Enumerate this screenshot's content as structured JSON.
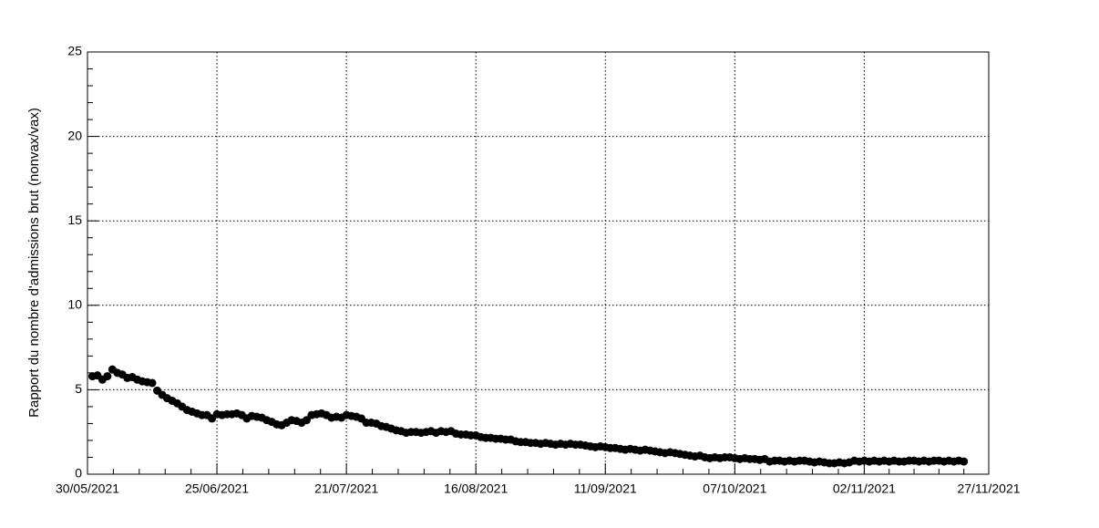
{
  "chart_data": {
    "type": "scatter",
    "ylabel": "Rapport du nombre d'admissions brut (nonvax/vax)",
    "xlim": [
      "30/05/2021",
      "27/11/2021"
    ],
    "xticks": [
      "30/05/2021",
      "25/06/2021",
      "21/07/2021",
      "16/08/2021",
      "11/09/2021",
      "07/10/2021",
      "02/11/2021",
      "27/11/2021"
    ],
    "ylim": [
      0,
      25
    ],
    "yticks": [
      0,
      5,
      10,
      15,
      20,
      25
    ],
    "grid": true,
    "color": "#000000",
    "x": [
      "31/05/2021",
      "01/06/2021",
      "02/06/2021",
      "03/06/2021",
      "04/06/2021",
      "05/06/2021",
      "06/06/2021",
      "07/06/2021",
      "08/06/2021",
      "09/06/2021",
      "10/06/2021",
      "11/06/2021",
      "12/06/2021",
      "13/06/2021",
      "14/06/2021",
      "15/06/2021",
      "16/06/2021",
      "17/06/2021",
      "18/06/2021",
      "19/06/2021",
      "20/06/2021",
      "21/06/2021",
      "22/06/2021",
      "23/06/2021",
      "24/06/2021",
      "25/06/2021",
      "26/06/2021",
      "27/06/2021",
      "28/06/2021",
      "29/06/2021",
      "30/06/2021",
      "01/07/2021",
      "02/07/2021",
      "03/07/2021",
      "04/07/2021",
      "05/07/2021",
      "06/07/2021",
      "07/07/2021",
      "08/07/2021",
      "09/07/2021",
      "10/07/2021",
      "11/07/2021",
      "12/07/2021",
      "13/07/2021",
      "14/07/2021",
      "15/07/2021",
      "16/07/2021",
      "17/07/2021",
      "18/07/2021",
      "19/07/2021",
      "20/07/2021",
      "21/07/2021",
      "22/07/2021",
      "23/07/2021",
      "24/07/2021",
      "25/07/2021",
      "26/07/2021",
      "27/07/2021",
      "28/07/2021",
      "29/07/2021",
      "30/07/2021",
      "31/07/2021",
      "01/08/2021",
      "02/08/2021",
      "03/08/2021",
      "04/08/2021",
      "05/08/2021",
      "06/08/2021",
      "07/08/2021",
      "08/08/2021",
      "09/08/2021",
      "10/08/2021",
      "11/08/2021",
      "12/08/2021",
      "13/08/2021",
      "14/08/2021",
      "15/08/2021",
      "16/08/2021",
      "17/08/2021",
      "18/08/2021",
      "19/08/2021",
      "20/08/2021",
      "21/08/2021",
      "22/08/2021",
      "23/08/2021",
      "24/08/2021",
      "25/08/2021",
      "26/08/2021",
      "27/08/2021",
      "28/08/2021",
      "29/08/2021",
      "30/08/2021",
      "31/08/2021",
      "01/09/2021",
      "02/09/2021",
      "03/09/2021",
      "04/09/2021",
      "05/09/2021",
      "06/09/2021",
      "07/09/2021",
      "08/09/2021",
      "09/09/2021",
      "10/09/2021",
      "11/09/2021",
      "12/09/2021",
      "13/09/2021",
      "14/09/2021",
      "15/09/2021",
      "16/09/2021",
      "17/09/2021",
      "18/09/2021",
      "19/09/2021",
      "20/09/2021",
      "21/09/2021",
      "22/09/2021",
      "23/09/2021",
      "24/09/2021",
      "25/09/2021",
      "26/09/2021",
      "27/09/2021",
      "28/09/2021",
      "29/09/2021",
      "30/09/2021",
      "01/10/2021",
      "02/10/2021",
      "03/10/2021",
      "04/10/2021",
      "05/10/2021",
      "06/10/2021",
      "07/10/2021",
      "08/10/2021",
      "09/10/2021",
      "10/10/2021",
      "11/10/2021",
      "12/10/2021",
      "13/10/2021",
      "14/10/2021",
      "15/10/2021",
      "16/10/2021",
      "17/10/2021",
      "18/10/2021",
      "19/10/2021",
      "20/10/2021",
      "21/10/2021",
      "22/10/2021",
      "23/10/2021",
      "24/10/2021",
      "25/10/2021",
      "26/10/2021",
      "27/10/2021",
      "28/10/2021",
      "29/10/2021",
      "30/10/2021",
      "31/10/2021",
      "01/11/2021",
      "02/11/2021",
      "03/11/2021",
      "04/11/2021",
      "05/11/2021",
      "06/11/2021",
      "07/11/2021",
      "08/11/2021",
      "09/11/2021",
      "10/11/2021",
      "11/11/2021",
      "12/11/2021",
      "13/11/2021",
      "14/11/2021",
      "15/11/2021",
      "16/11/2021",
      "17/11/2021",
      "18/11/2021",
      "19/11/2021",
      "20/11/2021",
      "21/11/2021",
      "22/11/2021"
    ],
    "values": [
      5.8,
      5.85,
      5.6,
      5.8,
      6.2,
      6.0,
      5.9,
      5.7,
      5.75,
      5.6,
      5.5,
      5.45,
      5.4,
      4.95,
      4.7,
      4.5,
      4.35,
      4.2,
      4.0,
      3.8,
      3.7,
      3.6,
      3.5,
      3.5,
      3.3,
      3.55,
      3.5,
      3.55,
      3.55,
      3.6,
      3.5,
      3.3,
      3.45,
      3.4,
      3.35,
      3.2,
      3.1,
      2.95,
      2.9,
      3.05,
      3.2,
      3.15,
      3.05,
      3.2,
      3.5,
      3.55,
      3.6,
      3.5,
      3.35,
      3.4,
      3.35,
      3.5,
      3.45,
      3.4,
      3.3,
      3.05,
      3.05,
      3.0,
      2.85,
      2.8,
      2.7,
      2.6,
      2.55,
      2.45,
      2.5,
      2.5,
      2.45,
      2.5,
      2.55,
      2.45,
      2.55,
      2.5,
      2.55,
      2.4,
      2.35,
      2.35,
      2.3,
      2.3,
      2.2,
      2.15,
      2.15,
      2.1,
      2.1,
      2.05,
      2.05,
      1.95,
      1.9,
      1.9,
      1.85,
      1.85,
      1.8,
      1.85,
      1.8,
      1.75,
      1.8,
      1.75,
      1.8,
      1.75,
      1.75,
      1.7,
      1.65,
      1.6,
      1.65,
      1.6,
      1.55,
      1.55,
      1.5,
      1.45,
      1.5,
      1.45,
      1.4,
      1.45,
      1.4,
      1.35,
      1.3,
      1.25,
      1.3,
      1.25,
      1.2,
      1.15,
      1.1,
      1.05,
      1.1,
      1.0,
      0.95,
      1.0,
      0.95,
      1.0,
      1.0,
      0.95,
      0.9,
      0.95,
      0.9,
      0.9,
      0.85,
      0.9,
      0.75,
      0.8,
      0.8,
      0.75,
      0.8,
      0.75,
      0.8,
      0.8,
      0.75,
      0.7,
      0.75,
      0.7,
      0.65,
      0.65,
      0.7,
      0.65,
      0.7,
      0.8,
      0.75,
      0.8,
      0.75,
      0.8,
      0.75,
      0.8,
      0.75,
      0.8,
      0.75,
      0.75,
      0.8,
      0.8,
      0.75,
      0.8,
      0.75,
      0.8,
      0.8,
      0.75,
      0.8,
      0.75,
      0.8,
      0.75
    ]
  }
}
